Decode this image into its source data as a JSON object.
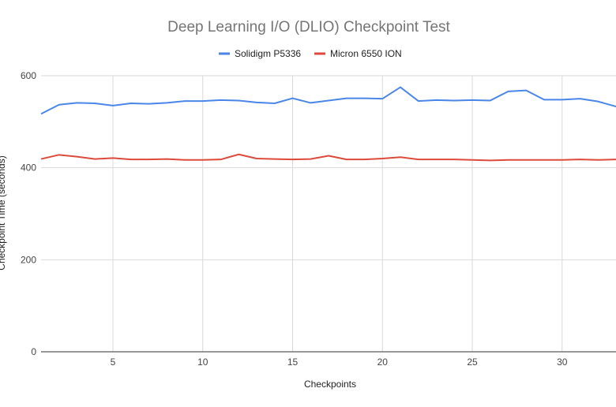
{
  "chart_data": {
    "type": "line",
    "title": "Deep Learning I/O (DLIO) Checkpoint Test",
    "xlabel": "Checkpoints",
    "ylabel": "Checkpoint Time (seconds)",
    "x": [
      1,
      2,
      3,
      4,
      5,
      6,
      7,
      8,
      9,
      10,
      11,
      12,
      13,
      14,
      15,
      16,
      17,
      18,
      19,
      20,
      21,
      22,
      23,
      24,
      25,
      26,
      27,
      28,
      29,
      30,
      31,
      32,
      33
    ],
    "xlim": [
      1,
      33
    ],
    "ylim": [
      0,
      600
    ],
    "xticks": [
      5,
      10,
      15,
      20,
      25,
      30
    ],
    "yticks": [
      0,
      200,
      400,
      600
    ],
    "grid": true,
    "legend_position": "top",
    "series": [
      {
        "name": "Solidigm P5336",
        "color": "#4a86e8",
        "values": [
          517,
          537,
          541,
          540,
          535,
          540,
          539,
          541,
          545,
          545,
          547,
          546,
          542,
          540,
          551,
          541,
          546,
          551,
          551,
          550,
          575,
          545,
          547,
          546,
          547,
          546,
          566,
          568,
          548,
          548,
          550,
          544,
          533
        ]
      },
      {
        "name": "Micron 6550 ION",
        "color": "#dc4a3b",
        "values": [
          419,
          428,
          424,
          419,
          421,
          418,
          418,
          419,
          417,
          417,
          418,
          429,
          420,
          419,
          418,
          419,
          426,
          418,
          418,
          420,
          423,
          418,
          418,
          418,
          417,
          416,
          417,
          417,
          417,
          417,
          418,
          417,
          418
        ]
      }
    ]
  }
}
